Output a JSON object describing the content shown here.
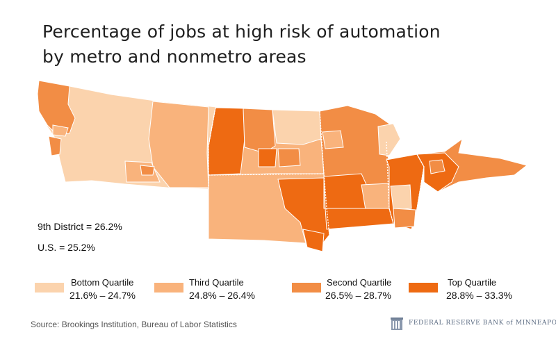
{
  "title_line1": "Percentage of jobs at high risk of automation",
  "title_line2": "by metro and nonmetro areas",
  "stats": {
    "district": "9th District = 26.2%",
    "us": "U.S. = 25.2%"
  },
  "legend": [
    {
      "name": "Bottom Quartile",
      "range": "21.6%  –  24.7%",
      "color": "#fbd3ad"
    },
    {
      "name": "Third Quartile",
      "range": "24.8%  –  26.4%",
      "color": "#f9b37c"
    },
    {
      "name": "Second Quartile",
      "range": "26.5%  –  28.7%",
      "color": "#f28d45"
    },
    {
      "name": "Top Quartile",
      "range": "28.8%  –  33.3%",
      "color": "#ee6a12"
    }
  ],
  "source": "Source: Brookings Institution, Bureau of Labor Statistics",
  "logo_text": "FEDERAL RESERVE BANK of MINNEAPOLIS",
  "map": {
    "regions": [
      {
        "name": "Montana",
        "quartile": "Bottom Quartile"
      },
      {
        "name": "North Dakota",
        "quartile": "Third Quartile"
      },
      {
        "name": "South Dakota",
        "quartile": "Third Quartile"
      },
      {
        "name": "Minnesota",
        "quartile": "Second Quartile"
      },
      {
        "name": "Wisconsin (northwest)",
        "quartile": "Second Quartile"
      },
      {
        "name": "Upper Peninsula of Michigan",
        "quartile": "Second Quartile"
      }
    ]
  }
}
